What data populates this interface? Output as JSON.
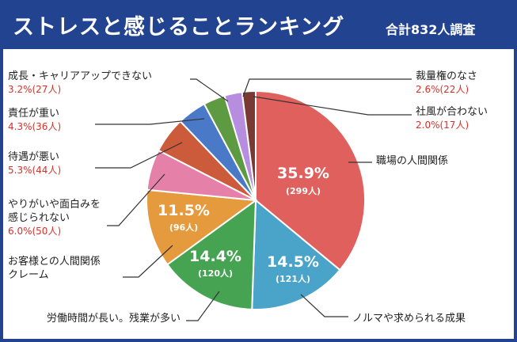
{
  "header": {
    "title": "ストレスと感じることランキング",
    "subtitle": "合計832人調査"
  },
  "chart_data": {
    "type": "pie",
    "title": "ストレスと感じることランキング",
    "subtitle": "合計832人調査",
    "total": 832,
    "start": "12 o'clock, clockwise",
    "slices": [
      {
        "label": "職場の人間関係",
        "percent": 35.9,
        "count": 299,
        "pct_text": "35.9%",
        "count_text": "(299人)",
        "color": "#e0605e"
      },
      {
        "label": "ノルマや求められる成果",
        "percent": 14.5,
        "count": 121,
        "pct_text": "14.5%",
        "count_text": "(121人)",
        "color": "#4aa3c9"
      },
      {
        "label": "労働時間が長い。残業が多い",
        "percent": 14.4,
        "count": 120,
        "pct_text": "14.4%",
        "count_text": "(120人)",
        "color": "#46a352"
      },
      {
        "label": "お客様との人間関係\nクレーム",
        "percent": 11.5,
        "count": 96,
        "pct_text": "11.5%",
        "count_text": "(96人)",
        "color": "#e49a3d"
      },
      {
        "label": "やりがいや面白みを\n感じられない",
        "percent": 6.0,
        "count": 50,
        "pct_text": "6.0%(50人)",
        "count_text": "",
        "color": "#e581a8"
      },
      {
        "label": "待遇が悪い",
        "percent": 5.3,
        "count": 44,
        "pct_text": "5.3%(44人)",
        "count_text": "",
        "color": "#cc5b3b"
      },
      {
        "label": "責任が重い",
        "percent": 4.3,
        "count": 36,
        "pct_text": "4.3%(36人)",
        "count_text": "",
        "color": "#4a79c7"
      },
      {
        "label": "成長・キャリアアップできない",
        "percent": 3.2,
        "count": 27,
        "pct_text": "3.2%(27人)",
        "count_text": "",
        "color": "#5e9a41"
      },
      {
        "label": "裁量権のなさ",
        "percent": 2.6,
        "count": 22,
        "pct_text": "2.6%(22人)",
        "count_text": "",
        "color": "#b78de0"
      },
      {
        "label": "社風が合わない",
        "percent": 2.0,
        "count": 17,
        "pct_text": "2.0%(17人)",
        "count_text": "",
        "color": "#7a3a34"
      }
    ]
  }
}
